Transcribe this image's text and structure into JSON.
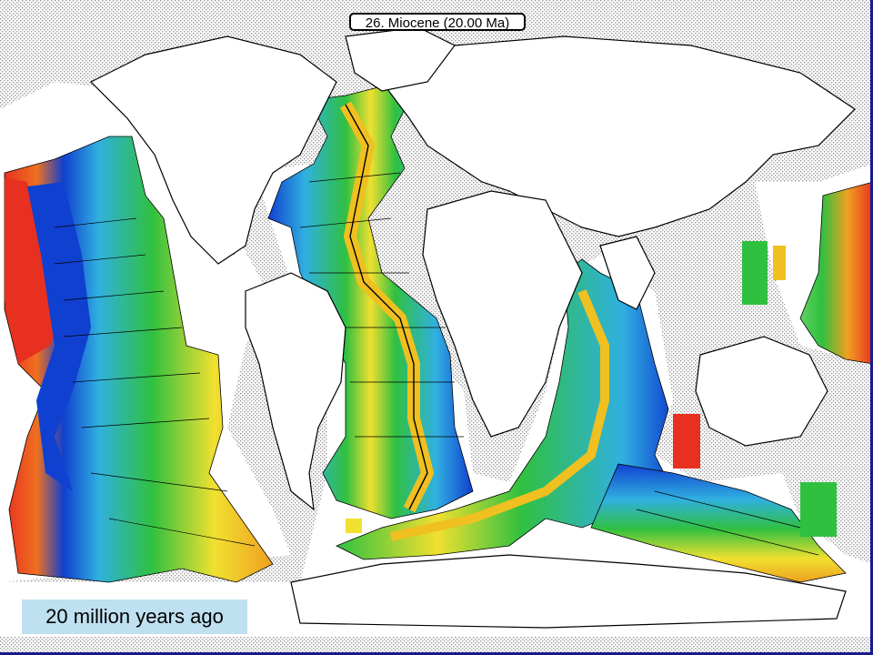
{
  "map": {
    "title": "26. Miocene (20.00 Ma)",
    "caption": "20 million years ago",
    "colors": {
      "young_ridge": "#e83020",
      "orange": "#f0a020",
      "yellow": "#f0e030",
      "green": "#30c040",
      "cyan": "#30b0e0",
      "blue_old": "#1040d0",
      "land_stipple": "#c8c8c8",
      "frame": "#1a1a8c",
      "caption_bg": "#bfe0f0"
    }
  }
}
